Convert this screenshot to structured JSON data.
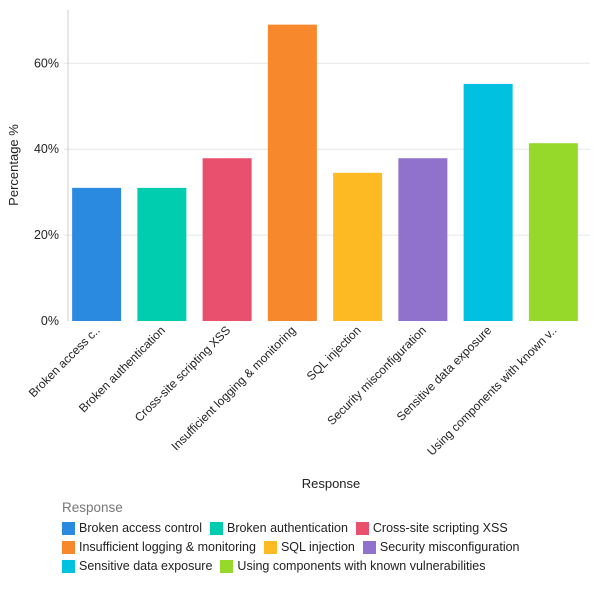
{
  "chart_data": {
    "type": "bar",
    "categories": [
      "Broken access control",
      "Broken authentication",
      "Cross-site scripting XSS",
      "Insufficient logging & monitoring",
      "SQL injection",
      "Security misconfiguration",
      "Sensitive data exposure",
      "Using components with known vulnerabilities"
    ],
    "tick_labels": [
      "Broken access c..",
      "Broken authentication",
      "Cross-site scripting XSS",
      "Insufficient logging & monitoring",
      "SQL injection",
      "Security misconfiguration",
      "Sensitive data exposure",
      "Using components with known v.."
    ],
    "values": [
      31.0,
      31.0,
      37.9,
      69.0,
      34.5,
      37.9,
      55.2,
      41.4
    ],
    "colors": [
      "#2a8ae0",
      "#00ccb0",
      "#e8506e",
      "#f7882c",
      "#fdba22",
      "#9071cc",
      "#00c2e0",
      "#96d92a"
    ],
    "xlabel": "Response",
    "ylabel": "Percentage %",
    "ylim": [
      0,
      72
    ],
    "yticks": [
      0,
      20,
      40,
      60
    ],
    "ytick_labels": [
      "0%",
      "20%",
      "40%",
      "60%"
    ],
    "grid": true,
    "legend": {
      "title": "Response",
      "placement": "bottom-left"
    }
  }
}
